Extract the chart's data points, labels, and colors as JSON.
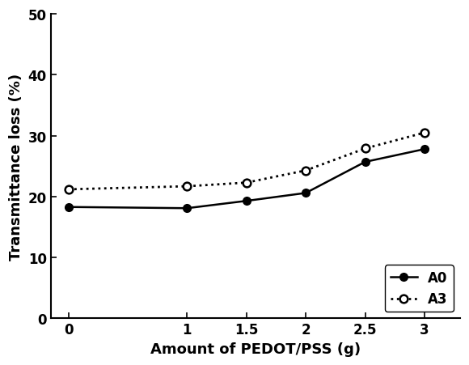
{
  "x": [
    0,
    1,
    1.5,
    2,
    2.5,
    3
  ],
  "A0_y": [
    18.3,
    18.1,
    19.3,
    20.6,
    25.7,
    27.8
  ],
  "A3_y": [
    21.2,
    21.7,
    22.3,
    24.3,
    27.9,
    30.5
  ],
  "xlabel": "Amount of PEDOT/PSS (g)",
  "ylabel": "Transmittance loss (%)",
  "xlim": [
    -0.15,
    3.3
  ],
  "ylim": [
    0,
    50
  ],
  "yticks": [
    0,
    10,
    20,
    30,
    40,
    50
  ],
  "xticks": [
    0,
    1,
    1.5,
    2,
    2.5,
    3
  ],
  "xtick_labels": [
    "0",
    "1",
    "1.5",
    "2",
    "2.5",
    "3"
  ],
  "ytick_labels": [
    "0",
    "10",
    "20",
    "30",
    "40",
    "50"
  ],
  "legend_labels": [
    "A0",
    "A3"
  ],
  "A0_color": "#000000",
  "A3_color": "#000000",
  "background_color": "#ffffff",
  "legend_loc": "lower right",
  "font_family": "Arial",
  "font_weight": "bold",
  "font_size": 13,
  "label_fontsize": 13,
  "tick_fontsize": 12
}
